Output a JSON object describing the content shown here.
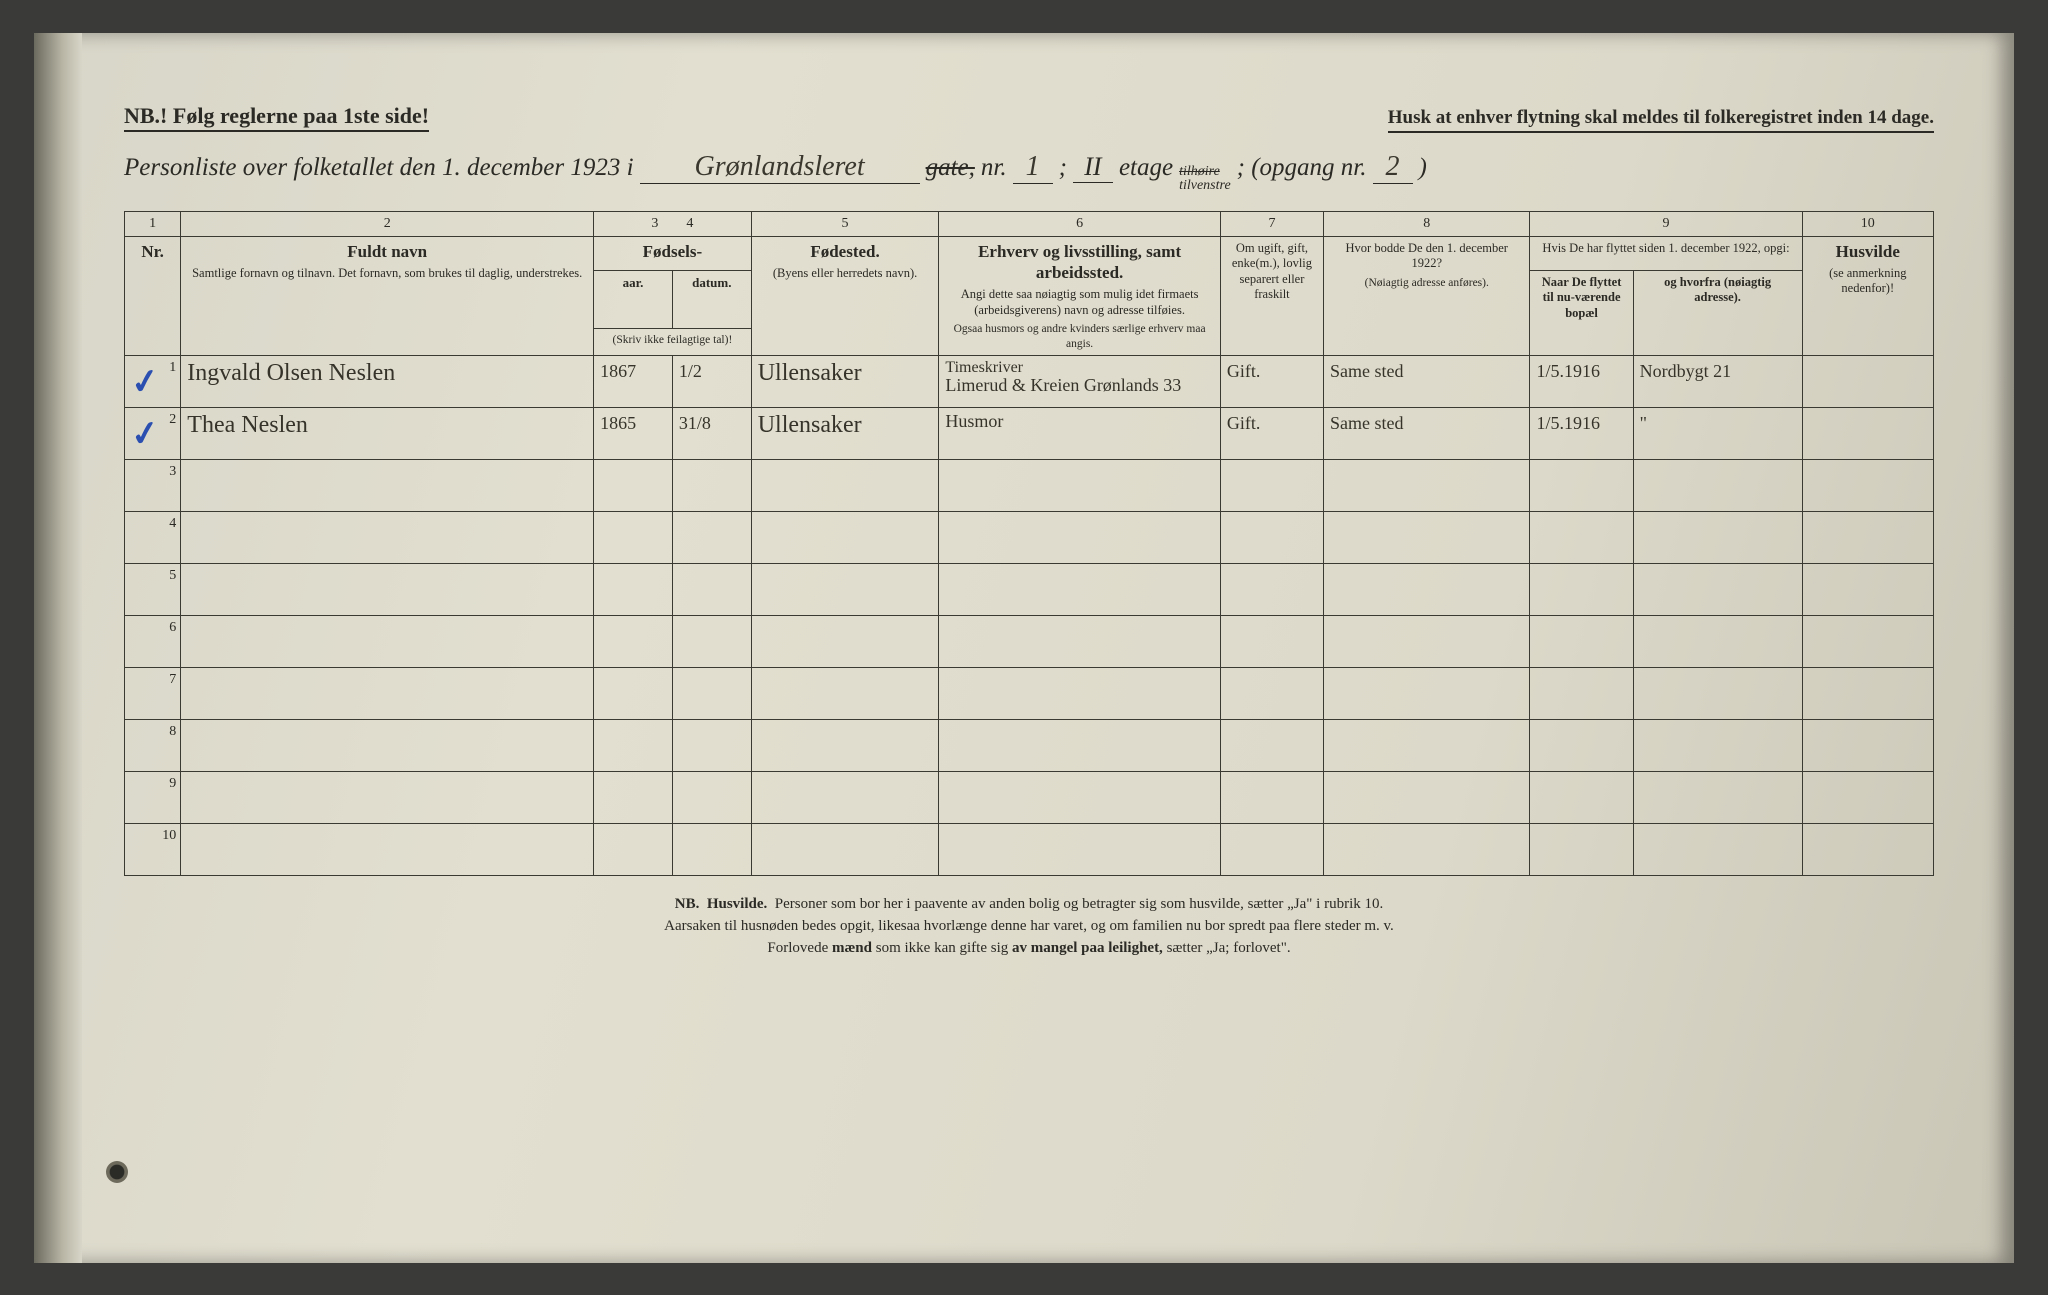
{
  "header": {
    "nb_line_left": "NB.! Følg reglerne paa 1ste side!",
    "nb_line_right": "Husk at enhver flytning skal meldes til folkeregistret inden 14 dage.",
    "title_prefix": "Personliste over folketallet den 1. december 1923 i",
    "street_written": "Grønlandsleret",
    "gate_printed_strike": "gate,",
    "nr_label": "nr.",
    "nr_value": "1",
    "semicolon": ";",
    "etage_value": "II",
    "etage_label": "etage",
    "side_top_strike": "tilhøire",
    "side_bottom": "tilvenstre",
    "opgang_label": "; (opgang nr.",
    "opgang_value": "2",
    "opgang_close": ")"
  },
  "columns": {
    "numbers": [
      "1",
      "2",
      "3",
      "4",
      "5",
      "6",
      "7",
      "8",
      "9",
      "10"
    ],
    "c1": "Nr.",
    "c2_main": "Fuldt navn",
    "c2_sub": "Samtlige fornavn og tilnavn. Det fornavn, som brukes til daglig, understrekes.",
    "c34_main": "Fødsels-",
    "c3": "aar.",
    "c4": "datum.",
    "c34_note": "(Skriv ikke feilagtige tal)!",
    "c5_main": "Fødested.",
    "c5_sub": "(Byens eller herredets navn).",
    "c6_main": "Erhverv og livsstilling, samt arbeidssted.",
    "c6_sub": "Angi dette saa nøiagtig som mulig idet firmaets (arbeidsgiverens) navn og adresse tilføies.",
    "c6_sub2": "Ogsaa husmors og andre kvinders særlige erhverv maa angis.",
    "c7": "Om ugift, gift, enke(m.), lovlig separert eller fraskilt",
    "c8_main": "Hvor bodde De den 1. december 1922?",
    "c8_sub": "(Nøiagtig adresse anføres).",
    "c9_top": "Hvis De har flyttet siden 1. december 1922, opgi:",
    "c9a": "Naar De flyttet til nu-værende bopæl",
    "c9b": "og hvorfra (nøiagtig adresse).",
    "c10_main": "Husvilde",
    "c10_sub": "(se anmerkning nedenfor)!"
  },
  "rows": [
    {
      "nr": "1",
      "check": true,
      "name": "Ingvald Olsen Neslen",
      "year": "1867",
      "date": "1/2",
      "birthplace": "Ullensaker",
      "occ_top": "Timeskriver",
      "occ_bottom": "Limerud & Kreien Grønlands 33",
      "marital": "Gift.",
      "addr1922": "Same sted",
      "moved_when": "1/5.1916",
      "moved_from": "Nordbygt 21"
    },
    {
      "nr": "2",
      "check": true,
      "name": "Thea Neslen",
      "year": "1865",
      "date": "31/8",
      "birthplace": "Ullensaker",
      "occ_top": "",
      "occ_bottom": "Husmor",
      "marital": "Gift.",
      "addr1922": "Same sted",
      "moved_when": "1/5.1916",
      "moved_from": "\""
    },
    {
      "nr": "3"
    },
    {
      "nr": "4"
    },
    {
      "nr": "5"
    },
    {
      "nr": "6"
    },
    {
      "nr": "7"
    },
    {
      "nr": "8"
    },
    {
      "nr": "9"
    },
    {
      "nr": "10"
    }
  ],
  "footnote": {
    "l1a": "NB.",
    "l1b": "Husvilde.",
    "l1c": "Personer som bor her i paavente av anden bolig og betragter sig som husvilde, sætter „Ja\" i rubrik 10.",
    "l2": "Aarsaken til husnøden bedes opgit, likesaa hvorlænge denne har varet, og om familien nu bor spredt paa flere steder m. v.",
    "l3a": "Forlovede ",
    "l3b": "mænd",
    "l3c": " som ikke kan gifte sig ",
    "l3d": "av mangel paa leilighet,",
    "l3e": " sætter „Ja; forlovet\"."
  }
}
